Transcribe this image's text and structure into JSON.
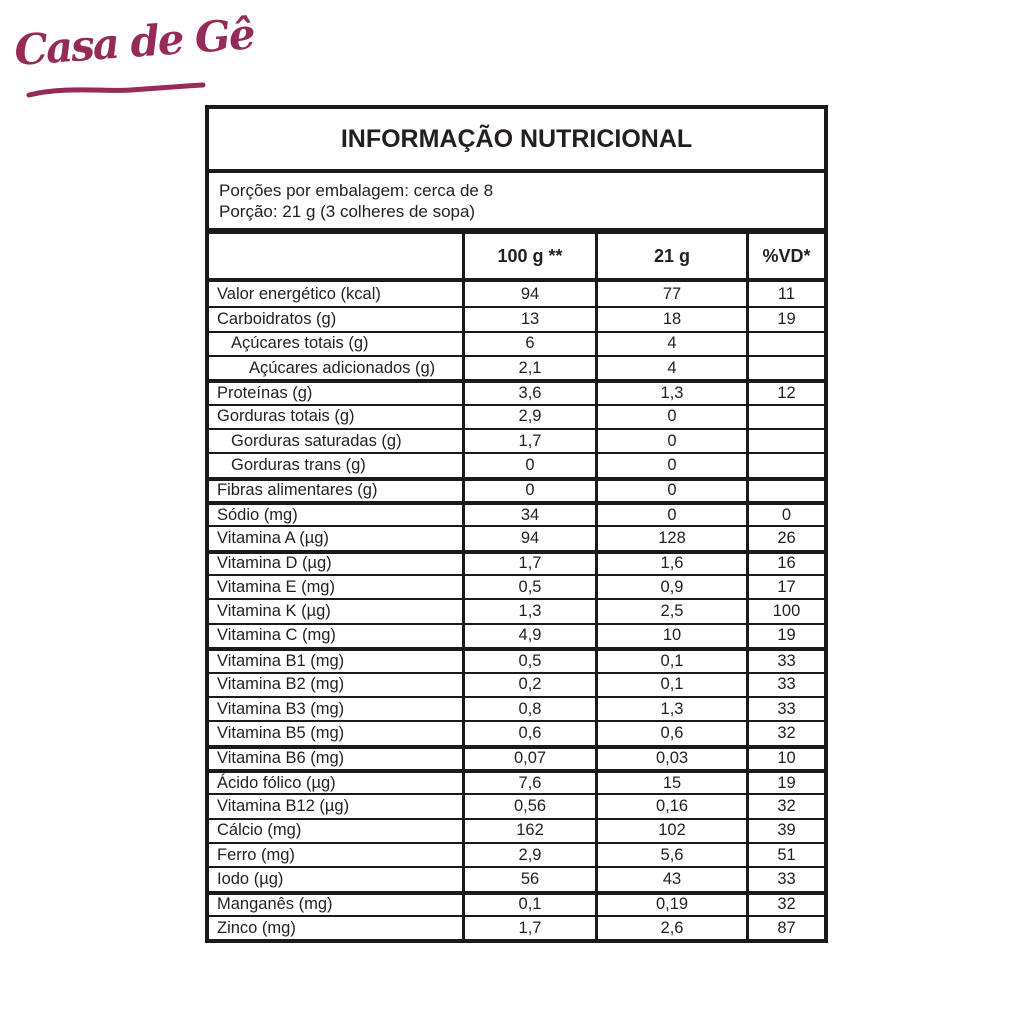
{
  "logo": {
    "text": "Casa de Gê",
    "color": "#962a58"
  },
  "table": {
    "title": "INFORMAÇÃO NUTRICIONAL",
    "serving_line1": "Porções por embalagem: cerca de 8",
    "serving_line2": "Porção: 21 g (3 colheres de sopa)",
    "columns": [
      "",
      "100 g **",
      "21 g",
      "%VD*"
    ],
    "rows": [
      {
        "label": "Valor energético (kcal)",
        "indent": 0,
        "per100g": "94",
        "per21g": "77",
        "vd": "11",
        "thick_top": false
      },
      {
        "label": "Carboidratos (g)",
        "indent": 0,
        "per100g": "13",
        "per21g": "18",
        "vd": "19",
        "thick_top": false
      },
      {
        "label": "Açúcares totais (g)",
        "indent": 1,
        "per100g": "6",
        "per21g": "4",
        "vd": "",
        "thick_top": false
      },
      {
        "label": "Açúcares adicionados (g)",
        "indent": 2,
        "per100g": "2,1",
        "per21g": "4",
        "vd": "",
        "thick_top": false
      },
      {
        "label": "Proteínas (g)",
        "indent": 0,
        "per100g": "3,6",
        "per21g": "1,3",
        "vd": "12",
        "thick_top": true
      },
      {
        "label": "Gorduras totais (g)",
        "indent": 0,
        "per100g": "2,9",
        "per21g": "0",
        "vd": "",
        "thick_top": false
      },
      {
        "label": "Gorduras saturadas (g)",
        "indent": 1,
        "per100g": "1,7",
        "per21g": "0",
        "vd": "",
        "thick_top": false
      },
      {
        "label": "Gorduras trans (g)",
        "indent": 1,
        "per100g": "0",
        "per21g": "0",
        "vd": "",
        "thick_top": false
      },
      {
        "label": "Fibras alimentares (g)",
        "indent": 0,
        "per100g": "0",
        "per21g": "0",
        "vd": "",
        "thick_top": true
      },
      {
        "label": "Sódio (mg)",
        "indent": 0,
        "per100g": "34",
        "per21g": "0",
        "vd": "0",
        "thick_top": true
      },
      {
        "label": "Vitamina A (µg)",
        "indent": 0,
        "per100g": "94",
        "per21g": "128",
        "vd": "26",
        "thick_top": false
      },
      {
        "label": "Vitamina D (µg)",
        "indent": 0,
        "per100g": "1,7",
        "per21g": "1,6",
        "vd": "16",
        "thick_top": true
      },
      {
        "label": "Vitamina E (mg)",
        "indent": 0,
        "per100g": "0,5",
        "per21g": "0,9",
        "vd": "17",
        "thick_top": false
      },
      {
        "label": "Vitamina K (µg)",
        "indent": 0,
        "per100g": "1,3",
        "per21g": "2,5",
        "vd": "100",
        "thick_top": false
      },
      {
        "label": "Vitamina C (mg)",
        "indent": 0,
        "per100g": "4,9",
        "per21g": "10",
        "vd": "19",
        "thick_top": false
      },
      {
        "label": "Vitamina B1 (mg)",
        "indent": 0,
        "per100g": "0,5",
        "per21g": "0,1",
        "vd": "33",
        "thick_top": true
      },
      {
        "label": "Vitamina B2 (mg)",
        "indent": 0,
        "per100g": "0,2",
        "per21g": "0,1",
        "vd": "33",
        "thick_top": false
      },
      {
        "label": "Vitamina B3 (mg)",
        "indent": 0,
        "per100g": "0,8",
        "per21g": "1,3",
        "vd": "33",
        "thick_top": false
      },
      {
        "label": "Vitamina B5 (mg)",
        "indent": 0,
        "per100g": "0,6",
        "per21g": "0,6",
        "vd": "32",
        "thick_top": false
      },
      {
        "label": "Vitamina B6 (mg)",
        "indent": 0,
        "per100g": "0,07",
        "per21g": "0,03",
        "vd": "10",
        "thick_top": true
      },
      {
        "label": "Ácido fólico (µg)",
        "indent": 0,
        "per100g": "7,6",
        "per21g": "15",
        "vd": "19",
        "thick_top": true
      },
      {
        "label": "Vitamina B12 (µg)",
        "indent": 0,
        "per100g": "0,56",
        "per21g": "0,16",
        "vd": "32",
        "thick_top": false
      },
      {
        "label": "Cálcio (mg)",
        "indent": 0,
        "per100g": "162",
        "per21g": "102",
        "vd": "39",
        "thick_top": false
      },
      {
        "label": "Ferro (mg)",
        "indent": 0,
        "per100g": "2,9",
        "per21g": "5,6",
        "vd": "51",
        "thick_top": false
      },
      {
        "label": "Iodo (µg)",
        "indent": 0,
        "per100g": "56",
        "per21g": "43",
        "vd": "33",
        "thick_top": false
      },
      {
        "label": "Manganês (mg)",
        "indent": 0,
        "per100g": "0,1",
        "per21g": "0,19",
        "vd": "32",
        "thick_top": true
      },
      {
        "label": "Zinco (mg)",
        "indent": 0,
        "per100g": "1,7",
        "per21g": "2,6",
        "vd": "87",
        "thick_top": false
      }
    ]
  },
  "colors": {
    "logo": "#962a58",
    "border": "#1c191a",
    "text": "#231f20",
    "background": "#ffffff"
  }
}
